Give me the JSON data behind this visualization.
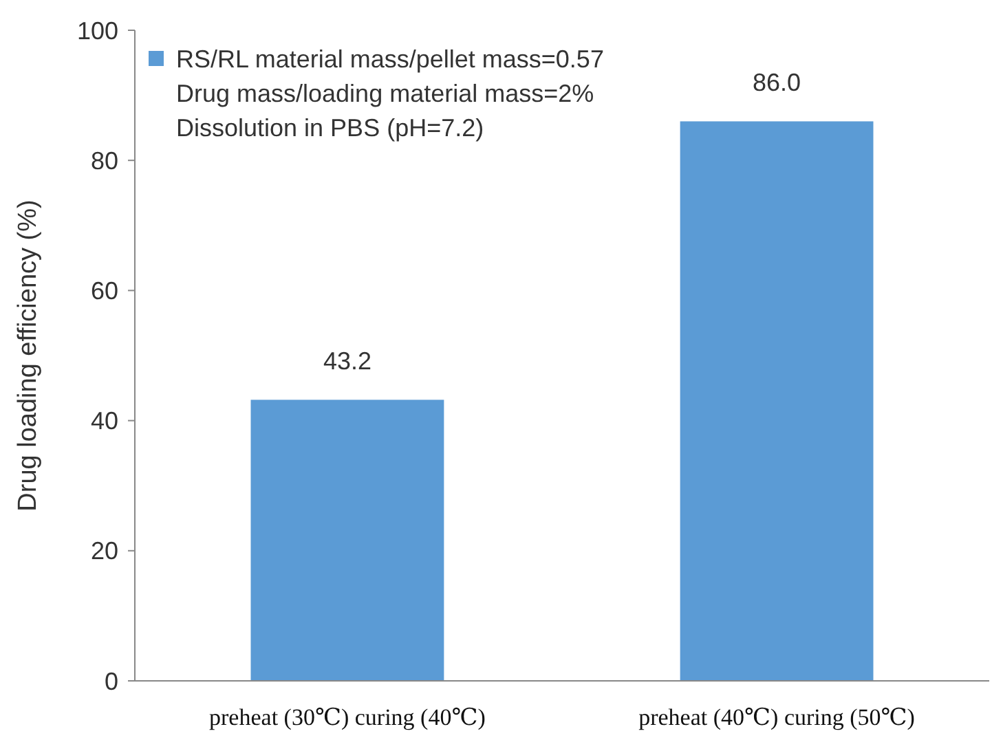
{
  "chart_data": {
    "type": "bar",
    "ylabel": "Drug loading efficiency (%)",
    "categories": [
      "preheat (30℃) curing (40℃)",
      "preheat (40℃) curing (50℃)"
    ],
    "series": [
      {
        "name": "RS/RL material mass/pellet mass=0.57",
        "color": "#5b9bd5",
        "values": [
          43.2,
          86.0
        ]
      }
    ],
    "value_labels": [
      "43.2",
      "86.0"
    ],
    "annotations": [
      "Drug mass/loading material mass=2%",
      "Dissolution in PBS (pH=7.2)"
    ],
    "ylim": [
      0,
      100
    ],
    "yticks": [
      0,
      20,
      40,
      60,
      80,
      100
    ],
    "grid": false,
    "legend": "top left"
  }
}
